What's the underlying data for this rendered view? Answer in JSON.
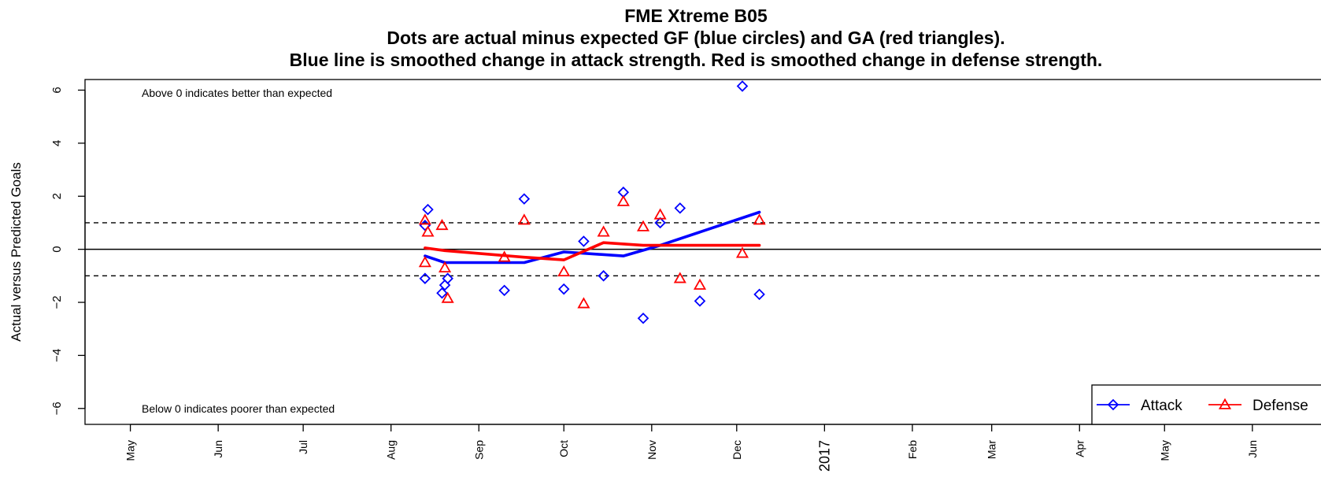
{
  "chart_data": {
    "type": "scatter",
    "title_lines": [
      "FME Xtreme B05",
      "Dots are actual minus expected GF (blue circles) and GA (red triangles).",
      "Blue line is smoothed change in attack strength. Red is smoothed change in defense strength."
    ],
    "ylabel": "Actual versus Predicted Goals",
    "xlabel": "",
    "ylim": [
      -6.6,
      6.4
    ],
    "xlim": [
      "2016-04-15",
      "2017-06-28"
    ],
    "y_ticks": [
      -6,
      -4,
      -2,
      0,
      2,
      4,
      6
    ],
    "y_tick_labels": [
      "−6",
      "−4",
      "−2",
      "0",
      "2",
      "4",
      "6"
    ],
    "x_ticks": [
      {
        "date": "2016-05-01",
        "label": "May"
      },
      {
        "date": "2016-06-01",
        "label": "Jun"
      },
      {
        "date": "2016-07-01",
        "label": "Jul"
      },
      {
        "date": "2016-08-01",
        "label": "Aug"
      },
      {
        "date": "2016-09-01",
        "label": "Sep"
      },
      {
        "date": "2016-10-01",
        "label": "Oct"
      },
      {
        "date": "2016-11-01",
        "label": "Nov"
      },
      {
        "date": "2016-12-01",
        "label": "Dec"
      },
      {
        "date": "2017-01-01",
        "label": "2017",
        "year": true
      },
      {
        "date": "2017-02-01",
        "label": "Feb"
      },
      {
        "date": "2017-03-01",
        "label": "Mar"
      },
      {
        "date": "2017-04-01",
        "label": "Apr"
      },
      {
        "date": "2017-05-01",
        "label": "May"
      },
      {
        "date": "2017-06-01",
        "label": "Jun"
      }
    ],
    "reference_lines": [
      {
        "y": 0,
        "style": "solid"
      },
      {
        "y": 1,
        "style": "dashed"
      },
      {
        "y": -1,
        "style": "dashed"
      }
    ],
    "annotations": {
      "top": "Above 0 indicates better than expected",
      "bottom": "Below 0 indicates poorer than expected"
    },
    "legend": {
      "placement": "bottom-right",
      "entries": [
        {
          "name": "Attack",
          "color": "#0000ff",
          "marker": "diamond"
        },
        {
          "name": "Defense",
          "color": "#ff0000",
          "marker": "triangle"
        }
      ]
    },
    "series": [
      {
        "name": "Attack",
        "color": "#0000ff",
        "marker": "diamond",
        "points": [
          {
            "x": "2016-08-13",
            "y": 0.9
          },
          {
            "x": "2016-08-14",
            "y": 1.5
          },
          {
            "x": "2016-08-13",
            "y": -1.1
          },
          {
            "x": "2016-08-19",
            "y": -1.65
          },
          {
            "x": "2016-08-20",
            "y": -1.35
          },
          {
            "x": "2016-08-21",
            "y": -1.1
          },
          {
            "x": "2016-09-10",
            "y": -1.55
          },
          {
            "x": "2016-09-17",
            "y": 1.9
          },
          {
            "x": "2016-10-01",
            "y": -1.5
          },
          {
            "x": "2016-10-08",
            "y": 0.3
          },
          {
            "x": "2016-10-15",
            "y": -1.0
          },
          {
            "x": "2016-10-22",
            "y": 2.15
          },
          {
            "x": "2016-10-29",
            "y": -2.6
          },
          {
            "x": "2016-11-04",
            "y": 1.0
          },
          {
            "x": "2016-11-11",
            "y": 1.55
          },
          {
            "x": "2016-11-18",
            "y": -1.95
          },
          {
            "x": "2016-12-03",
            "y": 6.15
          },
          {
            "x": "2016-12-09",
            "y": -1.7
          }
        ]
      },
      {
        "name": "Defense",
        "color": "#ff0000",
        "marker": "triangle",
        "points": [
          {
            "x": "2016-08-13",
            "y": 1.1
          },
          {
            "x": "2016-08-14",
            "y": 0.65
          },
          {
            "x": "2016-08-13",
            "y": -0.5
          },
          {
            "x": "2016-08-19",
            "y": 0.9
          },
          {
            "x": "2016-08-20",
            "y": -0.7
          },
          {
            "x": "2016-08-21",
            "y": -1.85
          },
          {
            "x": "2016-09-10",
            "y": -0.3
          },
          {
            "x": "2016-09-17",
            "y": 1.1
          },
          {
            "x": "2016-10-01",
            "y": -0.85
          },
          {
            "x": "2016-10-08",
            "y": -2.05
          },
          {
            "x": "2016-10-15",
            "y": 0.65
          },
          {
            "x": "2016-10-22",
            "y": 1.8
          },
          {
            "x": "2016-10-29",
            "y": 0.85
          },
          {
            "x": "2016-11-04",
            "y": 1.3
          },
          {
            "x": "2016-11-11",
            "y": -1.1
          },
          {
            "x": "2016-11-18",
            "y": -1.35
          },
          {
            "x": "2016-12-03",
            "y": -0.15
          },
          {
            "x": "2016-12-09",
            "y": 1.1
          }
        ]
      }
    ],
    "smoothed": [
      {
        "name": "Attack",
        "color": "#0000ff",
        "points": [
          {
            "x": "2016-08-13",
            "y": -0.25
          },
          {
            "x": "2016-08-20",
            "y": -0.5
          },
          {
            "x": "2016-09-17",
            "y": -0.5
          },
          {
            "x": "2016-10-01",
            "y": -0.1
          },
          {
            "x": "2016-10-22",
            "y": -0.25
          },
          {
            "x": "2016-11-04",
            "y": 0.15
          },
          {
            "x": "2016-12-09",
            "y": 1.4
          }
        ]
      },
      {
        "name": "Defense",
        "color": "#ff0000",
        "points": [
          {
            "x": "2016-08-13",
            "y": 0.05
          },
          {
            "x": "2016-08-20",
            "y": -0.05
          },
          {
            "x": "2016-09-17",
            "y": -0.3
          },
          {
            "x": "2016-10-01",
            "y": -0.4
          },
          {
            "x": "2016-10-15",
            "y": 0.25
          },
          {
            "x": "2016-10-29",
            "y": 0.15
          },
          {
            "x": "2016-12-09",
            "y": 0.15
          }
        ]
      }
    ]
  }
}
